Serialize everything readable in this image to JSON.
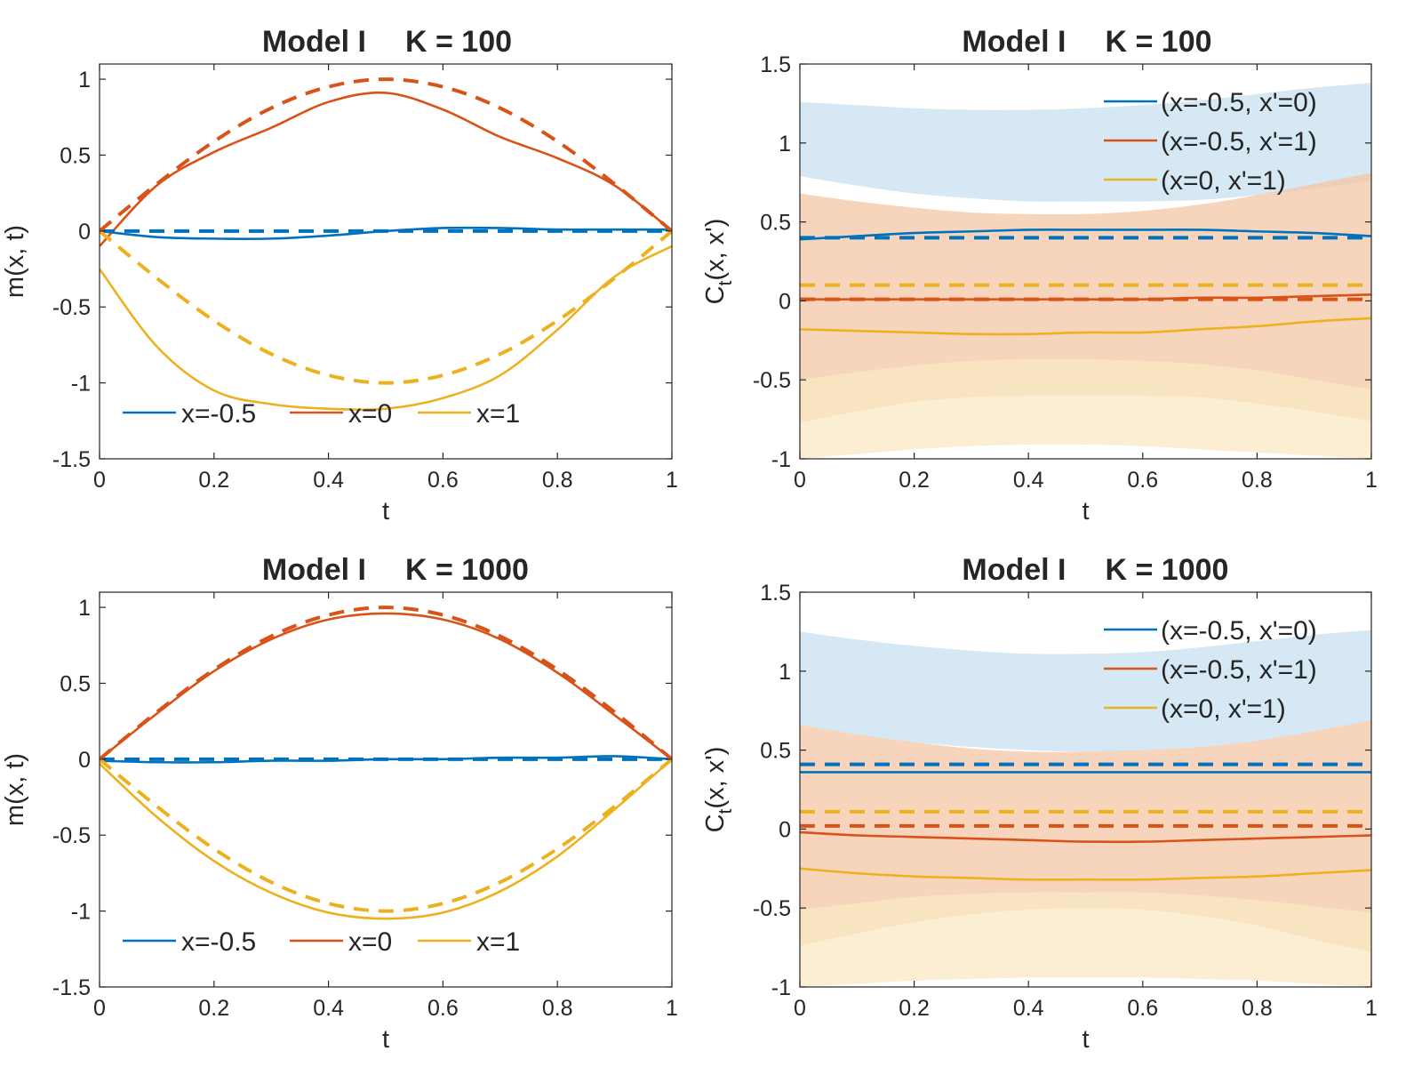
{
  "figure": {
    "layout": "2x2"
  },
  "chart_data": [
    {
      "id": "mean_k100",
      "type": "line",
      "title_parts": [
        "Model I",
        "K = 100"
      ],
      "xlabel": "t",
      "ylabel": "m(x, t)",
      "xlim": [
        0,
        1
      ],
      "ylim": [
        -1.5,
        1.1
      ],
      "xticks": [
        0,
        0.2,
        0.4,
        0.6,
        0.8,
        1
      ],
      "xtick_labels": [
        "0",
        "0.2",
        "0.4",
        "0.6",
        "0.8",
        "1"
      ],
      "yticks": [
        -1.5,
        -1,
        -0.5,
        0,
        0.5,
        1
      ],
      "ytick_labels": [
        "-1.5",
        "-1",
        "-0.5",
        "0",
        "0.5",
        "1"
      ],
      "legend": {
        "placement": "bottom-horizontal",
        "entries": [
          "x=-0.5",
          "x=0",
          "x=1"
        ]
      },
      "x": [
        0,
        0.1,
        0.2,
        0.3,
        0.4,
        0.5,
        0.6,
        0.7,
        0.8,
        0.9,
        1
      ],
      "series": [
        {
          "name": "x=-0.5",
          "color": "#0072BD",
          "style": "solid",
          "values": [
            0,
            -0.04,
            -0.05,
            -0.05,
            -0.03,
            0,
            0.02,
            0.02,
            0.01,
            0.01,
            0.01
          ]
        },
        {
          "name": "x=0",
          "color": "#D95319",
          "style": "solid",
          "values": [
            -0.1,
            0.3,
            0.52,
            0.68,
            0.85,
            0.91,
            0.8,
            0.62,
            0.48,
            0.3,
            0
          ]
        },
        {
          "name": "x=1",
          "color": "#EDB120",
          "style": "solid",
          "values": [
            -0.25,
            -0.76,
            -1.05,
            -1.14,
            -1.17,
            -1.17,
            -1.1,
            -0.95,
            -0.65,
            -0.3,
            -0.1
          ]
        },
        {
          "name": "x=-0.5 exact",
          "color": "#0072BD",
          "style": "dashed",
          "values": [
            0,
            0,
            0,
            0,
            0,
            0,
            0,
            0,
            0,
            0,
            0
          ]
        },
        {
          "name": "x=0 exact",
          "color": "#D95319",
          "style": "dashed",
          "values": [
            0,
            0.31,
            0.59,
            0.81,
            0.95,
            1,
            0.95,
            0.81,
            0.59,
            0.31,
            0
          ]
        },
        {
          "name": "x=1 exact",
          "color": "#EDB120",
          "style": "dashed",
          "values": [
            0,
            -0.31,
            -0.59,
            -0.81,
            -0.95,
            -1,
            -0.95,
            -0.81,
            -0.59,
            -0.31,
            0
          ]
        }
      ]
    },
    {
      "id": "cov_k100",
      "type": "line",
      "title_parts": [
        "Model I",
        "K = 100"
      ],
      "xlabel": "t",
      "ylabel_main": "C",
      "ylabel_sub": "t",
      "ylabel_rest": "(x, x')",
      "xlim": [
        0,
        1
      ],
      "ylim": [
        -1,
        1.5
      ],
      "xticks": [
        0,
        0.2,
        0.4,
        0.6,
        0.8,
        1
      ],
      "xtick_labels": [
        "0",
        "0.2",
        "0.4",
        "0.6",
        "0.8",
        "1"
      ],
      "yticks": [
        -1,
        -0.5,
        0,
        0.5,
        1,
        1.5
      ],
      "ytick_labels": [
        "-1",
        "-0.5",
        "0",
        "0.5",
        "1",
        "1.5"
      ],
      "legend": {
        "placement": "top-right",
        "entries": [
          "(x=-0.5, x'=0)",
          "(x=-0.5, x'=1)",
          "(x=0, x'=1)"
        ]
      },
      "x": [
        0,
        0.1,
        0.2,
        0.3,
        0.4,
        0.5,
        0.6,
        0.7,
        0.8,
        0.9,
        1
      ],
      "bands": [
        {
          "name": "(x=-0.5, x'=0) band",
          "color": "#C7E0EF",
          "upper": [
            1.26,
            1.24,
            1.22,
            1.21,
            1.21,
            1.22,
            1.24,
            1.27,
            1.31,
            1.35,
            1.38
          ],
          "lower": [
            0.79,
            0.73,
            0.68,
            0.65,
            0.63,
            0.63,
            0.63,
            0.64,
            0.67,
            0.71,
            0.76
          ]
        },
        {
          "name": "(x=-0.5, x'=1) band",
          "color": "#F4C7A6",
          "upper": [
            0.68,
            0.63,
            0.59,
            0.56,
            0.55,
            0.55,
            0.57,
            0.61,
            0.67,
            0.74,
            0.81
          ],
          "lower": [
            -0.77,
            -0.7,
            -0.64,
            -0.61,
            -0.6,
            -0.6,
            -0.6,
            -0.61,
            -0.65,
            -0.7,
            -0.76
          ]
        },
        {
          "name": "(x=0, x'=1) band",
          "color": "#F9E8C4",
          "upper": [
            -0.5,
            -0.45,
            -0.41,
            -0.38,
            -0.37,
            -0.37,
            -0.38,
            -0.4,
            -0.44,
            -0.5,
            -0.56
          ],
          "lower": [
            -1,
            -0.97,
            -0.94,
            -0.92,
            -0.91,
            -0.91,
            -0.92,
            -0.94,
            -0.96,
            -0.98,
            -1
          ]
        }
      ],
      "series": [
        {
          "name": "(x=-0.5, x'=0)",
          "color": "#0072BD",
          "style": "solid",
          "values": [
            0.39,
            0.41,
            0.43,
            0.44,
            0.45,
            0.45,
            0.45,
            0.45,
            0.44,
            0.43,
            0.41
          ]
        },
        {
          "name": "(x=-0.5, x'=1)",
          "color": "#D95319",
          "style": "solid",
          "values": [
            0.01,
            0.01,
            0.01,
            0.01,
            0.01,
            0.01,
            0.01,
            0.02,
            0.02,
            0.03,
            0.04
          ]
        },
        {
          "name": "(x=0, x'=1)",
          "color": "#EDB120",
          "style": "solid",
          "values": [
            -0.18,
            -0.19,
            -0.2,
            -0.21,
            -0.21,
            -0.2,
            -0.2,
            -0.18,
            -0.16,
            -0.13,
            -0.11
          ]
        },
        {
          "name": "(x=-0.5, x'=0) exact",
          "color": "#0072BD",
          "style": "dashed",
          "values": [
            0.4,
            0.4,
            0.4,
            0.4,
            0.4,
            0.4,
            0.4,
            0.4,
            0.4,
            0.4,
            0.4
          ]
        },
        {
          "name": "(x=-0.5, x'=1) exact",
          "color": "#D95319",
          "style": "dashed",
          "values": [
            0.01,
            0.01,
            0.01,
            0.01,
            0.01,
            0.01,
            0.01,
            0.01,
            0.01,
            0.01,
            0.01
          ]
        },
        {
          "name": "(x=0, x'=1) exact",
          "color": "#EDB120",
          "style": "dashed",
          "values": [
            0.1,
            0.1,
            0.1,
            0.1,
            0.1,
            0.1,
            0.1,
            0.1,
            0.1,
            0.1,
            0.1
          ]
        }
      ]
    },
    {
      "id": "mean_k1000",
      "type": "line",
      "title_parts": [
        "Model I",
        "K = 1000"
      ],
      "xlabel": "t",
      "ylabel": "m(x, t)",
      "xlim": [
        0,
        1
      ],
      "ylim": [
        -1.5,
        1.1
      ],
      "xticks": [
        0,
        0.2,
        0.4,
        0.6,
        0.8,
        1
      ],
      "xtick_labels": [
        "0",
        "0.2",
        "0.4",
        "0.6",
        "0.8",
        "1"
      ],
      "yticks": [
        -1.5,
        -1,
        -0.5,
        0,
        0.5,
        1
      ],
      "ytick_labels": [
        "-1.5",
        "-1",
        "-0.5",
        "0",
        "0.5",
        "1"
      ],
      "legend": {
        "placement": "bottom-horizontal",
        "entries": [
          "x=-0.5",
          "x=0",
          "x=1"
        ]
      },
      "x": [
        0,
        0.1,
        0.2,
        0.3,
        0.4,
        0.5,
        0.6,
        0.7,
        0.8,
        0.9,
        1
      ],
      "series": [
        {
          "name": "x=-0.5",
          "color": "#0072BD",
          "style": "solid",
          "values": [
            -0.01,
            -0.02,
            -0.02,
            -0.01,
            -0.01,
            0,
            0,
            0.01,
            0.01,
            0.02,
            0
          ]
        },
        {
          "name": "x=0",
          "color": "#D95319",
          "style": "solid",
          "values": [
            0,
            0.3,
            0.58,
            0.79,
            0.92,
            0.96,
            0.92,
            0.79,
            0.57,
            0.29,
            0
          ]
        },
        {
          "name": "x=1",
          "color": "#EDB120",
          "style": "solid",
          "values": [
            -0.03,
            -0.38,
            -0.67,
            -0.88,
            -1.01,
            -1.05,
            -1.01,
            -0.87,
            -0.64,
            -0.33,
            0
          ]
        },
        {
          "name": "x=-0.5 exact",
          "color": "#0072BD",
          "style": "dashed",
          "values": [
            0,
            0,
            0,
            0,
            0,
            0,
            0,
            0,
            0,
            0,
            0
          ]
        },
        {
          "name": "x=0 exact",
          "color": "#D95319",
          "style": "dashed",
          "values": [
            0,
            0.31,
            0.59,
            0.81,
            0.95,
            1,
            0.95,
            0.81,
            0.59,
            0.31,
            0
          ]
        },
        {
          "name": "x=1 exact",
          "color": "#EDB120",
          "style": "dashed",
          "values": [
            0,
            -0.31,
            -0.59,
            -0.81,
            -0.95,
            -1,
            -0.95,
            -0.81,
            -0.59,
            -0.31,
            0
          ]
        }
      ]
    },
    {
      "id": "cov_k1000",
      "type": "line",
      "title_parts": [
        "Model I",
        "K = 1000"
      ],
      "xlabel": "t",
      "ylabel_main": "C",
      "ylabel_sub": "t",
      "ylabel_rest": "(x, x')",
      "xlim": [
        0,
        1
      ],
      "ylim": [
        -1,
        1.5
      ],
      "xticks": [
        0,
        0.2,
        0.4,
        0.6,
        0.8,
        1
      ],
      "xtick_labels": [
        "0",
        "0.2",
        "0.4",
        "0.6",
        "0.8",
        "1"
      ],
      "yticks": [
        -1,
        -0.5,
        0,
        0.5,
        1,
        1.5
      ],
      "ytick_labels": [
        "-1",
        "-0.5",
        "0",
        "0.5",
        "1",
        "1.5"
      ],
      "legend": {
        "placement": "top-right",
        "entries": [
          "(x=-0.5, x'=0)",
          "(x=-0.5, x'=1)",
          "(x=0, x'=1)"
        ]
      },
      "x": [
        0,
        0.1,
        0.2,
        0.3,
        0.4,
        0.5,
        0.6,
        0.7,
        0.8,
        0.9,
        1
      ],
      "bands": [
        {
          "name": "(x=-0.5, x'=0) band",
          "color": "#C7E0EF",
          "upper": [
            1.25,
            1.2,
            1.16,
            1.13,
            1.11,
            1.11,
            1.12,
            1.15,
            1.19,
            1.23,
            1.26
          ],
          "lower": [
            0.66,
            0.6,
            0.55,
            0.52,
            0.5,
            0.49,
            0.5,
            0.52,
            0.56,
            0.62,
            0.69
          ]
        },
        {
          "name": "(x=-0.5, x'=1) band",
          "color": "#F4C7A6",
          "upper": [
            0.66,
            0.6,
            0.55,
            0.51,
            0.49,
            0.49,
            0.5,
            0.52,
            0.56,
            0.62,
            0.69
          ],
          "lower": [
            -0.74,
            -0.66,
            -0.59,
            -0.54,
            -0.51,
            -0.5,
            -0.51,
            -0.55,
            -0.61,
            -0.7,
            -0.78
          ]
        },
        {
          "name": "(x=0, x'=1) band",
          "color": "#F9E8C4",
          "upper": [
            -0.51,
            -0.47,
            -0.43,
            -0.41,
            -0.4,
            -0.4,
            -0.4,
            -0.42,
            -0.45,
            -0.49,
            -0.53
          ],
          "lower": [
            -1,
            -0.98,
            -0.96,
            -0.95,
            -0.94,
            -0.94,
            -0.94,
            -0.95,
            -0.96,
            -0.98,
            -1
          ]
        }
      ],
      "series": [
        {
          "name": "(x=-0.5, x'=0)",
          "color": "#0072BD",
          "style": "solid",
          "values": [
            0.36,
            0.36,
            0.36,
            0.36,
            0.36,
            0.36,
            0.36,
            0.36,
            0.36,
            0.36,
            0.36
          ]
        },
        {
          "name": "(x=-0.5, x'=1)",
          "color": "#D95319",
          "style": "solid",
          "values": [
            -0.02,
            -0.04,
            -0.05,
            -0.06,
            -0.07,
            -0.08,
            -0.08,
            -0.07,
            -0.06,
            -0.05,
            -0.04
          ]
        },
        {
          "name": "(x=0, x'=1)",
          "color": "#EDB120",
          "style": "solid",
          "values": [
            -0.25,
            -0.28,
            -0.3,
            -0.31,
            -0.32,
            -0.32,
            -0.32,
            -0.31,
            -0.3,
            -0.28,
            -0.26
          ]
        },
        {
          "name": "(x=-0.5, x'=0) exact",
          "color": "#0072BD",
          "style": "dashed",
          "values": [
            0.41,
            0.41,
            0.41,
            0.41,
            0.41,
            0.41,
            0.41,
            0.41,
            0.41,
            0.41,
            0.41
          ]
        },
        {
          "name": "(x=-0.5, x'=1) exact",
          "color": "#D95319",
          "style": "dashed",
          "values": [
            0.02,
            0.02,
            0.02,
            0.02,
            0.02,
            0.02,
            0.02,
            0.02,
            0.02,
            0.02,
            0.02
          ]
        },
        {
          "name": "(x=0, x'=1) exact",
          "color": "#EDB120",
          "style": "dashed",
          "values": [
            0.11,
            0.11,
            0.11,
            0.11,
            0.11,
            0.11,
            0.11,
            0.11,
            0.11,
            0.11,
            0.11
          ]
        }
      ]
    }
  ]
}
